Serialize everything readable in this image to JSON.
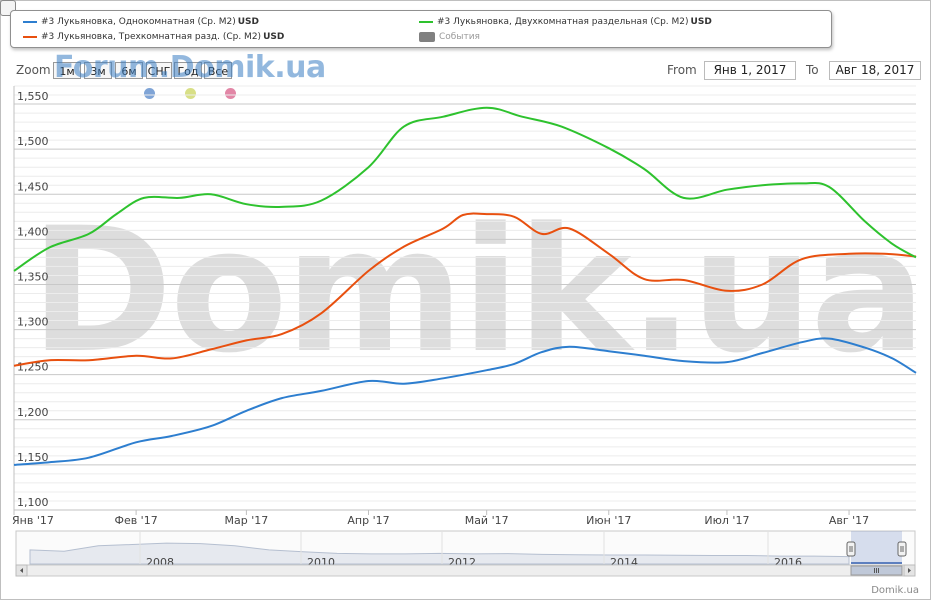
{
  "legend": {
    "items": [
      {
        "label": "#3 Лукьяновка, Однокомнатная (Ср. М2)",
        "unit": "USD",
        "color": "#2d7ecf"
      },
      {
        "label": "#3 Лукьяновка, Трехкомнатная разд. (Ср. М2)",
        "unit": "USD",
        "color": "#e8500f"
      },
      {
        "label": "#3 Лукьяновка, Двухкомнатная раздельная (Ср. М2)",
        "unit": "USD",
        "color": "#2ec22e"
      },
      {
        "label": "События",
        "color": "#808080"
      }
    ]
  },
  "toolbar": {
    "zoom_label": "Zoom",
    "zoom_buttons": [
      "1м",
      "3м",
      "6м",
      "СНГ",
      "Год",
      "Все"
    ],
    "watermark": "Forum.Domik.ua",
    "from_label": "From",
    "from_value": "Янв 1, 2017",
    "to_label": "To",
    "to_value": "Авг 18, 2017"
  },
  "big_watermark": "Domik.ua",
  "event_dot_colors": [
    "#7fa4d6",
    "#d8df86",
    "#e286a6"
  ],
  "navigator": {
    "years": [
      "2008",
      "2010",
      "2012",
      "2014",
      "2016"
    ]
  },
  "credit": "Domik.ua",
  "chart_data": {
    "type": "line",
    "x_labels": [
      "Янв '17",
      "Фев '17",
      "Мар '17",
      "Апр '17",
      "Май '17",
      "Июн '17",
      "Июл '17",
      "Авг '17"
    ],
    "x_range": [
      "2017-01-01",
      "2017-08-18"
    ],
    "y_ticks": [
      1100,
      1150,
      1200,
      1250,
      1300,
      1350,
      1400,
      1450,
      1500,
      1550
    ],
    "ylim": [
      1100,
      1570
    ],
    "grid": true,
    "legend_position": "top",
    "series": [
      {
        "name": "#3 Лукьяновка, Однокомнатная (Ср. М2)",
        "color": "#2d7ecf",
        "points": [
          [
            "2017-01-01",
            1150
          ],
          [
            "2017-01-10",
            1153
          ],
          [
            "2017-01-20",
            1158
          ],
          [
            "2017-02-01",
            1175
          ],
          [
            "2017-02-10",
            1182
          ],
          [
            "2017-02-20",
            1193
          ],
          [
            "2017-03-01",
            1210
          ],
          [
            "2017-03-10",
            1224
          ],
          [
            "2017-03-20",
            1232
          ],
          [
            "2017-04-01",
            1243
          ],
          [
            "2017-04-10",
            1240
          ],
          [
            "2017-04-20",
            1246
          ],
          [
            "2017-05-01",
            1255
          ],
          [
            "2017-05-08",
            1262
          ],
          [
            "2017-05-15",
            1275
          ],
          [
            "2017-05-22",
            1281
          ],
          [
            "2017-06-01",
            1276
          ],
          [
            "2017-06-10",
            1271
          ],
          [
            "2017-06-20",
            1265
          ],
          [
            "2017-07-01",
            1264
          ],
          [
            "2017-07-10",
            1274
          ],
          [
            "2017-07-20",
            1286
          ],
          [
            "2017-07-27",
            1290
          ],
          [
            "2017-08-05",
            1280
          ],
          [
            "2017-08-12",
            1268
          ],
          [
            "2017-08-18",
            1252
          ]
        ]
      },
      {
        "name": "#3 Лукьяновка, Трехкомнатная разд. (Ср. М2)",
        "color": "#e8500f",
        "points": [
          [
            "2017-01-01",
            1260
          ],
          [
            "2017-01-10",
            1266
          ],
          [
            "2017-01-20",
            1266
          ],
          [
            "2017-02-01",
            1271
          ],
          [
            "2017-02-10",
            1268
          ],
          [
            "2017-02-20",
            1278
          ],
          [
            "2017-03-01",
            1288
          ],
          [
            "2017-03-10",
            1295
          ],
          [
            "2017-03-20",
            1318
          ],
          [
            "2017-04-01",
            1365
          ],
          [
            "2017-04-10",
            1392
          ],
          [
            "2017-04-20",
            1412
          ],
          [
            "2017-04-25",
            1427
          ],
          [
            "2017-05-01",
            1428
          ],
          [
            "2017-05-08",
            1425
          ],
          [
            "2017-05-15",
            1406
          ],
          [
            "2017-05-22",
            1412
          ],
          [
            "2017-06-01",
            1384
          ],
          [
            "2017-06-10",
            1356
          ],
          [
            "2017-06-20",
            1355
          ],
          [
            "2017-07-01",
            1343
          ],
          [
            "2017-07-10",
            1350
          ],
          [
            "2017-07-20",
            1378
          ],
          [
            "2017-08-01",
            1384
          ],
          [
            "2017-08-10",
            1384
          ],
          [
            "2017-08-18",
            1381
          ]
        ]
      },
      {
        "name": "#3 Лукьяновка, Двухкомнатная раздельная (Ср. М2)",
        "color": "#2ec22e",
        "points": [
          [
            "2017-01-01",
            1365
          ],
          [
            "2017-01-10",
            1391
          ],
          [
            "2017-01-20",
            1406
          ],
          [
            "2017-01-27",
            1428
          ],
          [
            "2017-02-03",
            1446
          ],
          [
            "2017-02-12",
            1446
          ],
          [
            "2017-02-20",
            1450
          ],
          [
            "2017-03-01",
            1439
          ],
          [
            "2017-03-10",
            1436
          ],
          [
            "2017-03-20",
            1443
          ],
          [
            "2017-04-01",
            1480
          ],
          [
            "2017-04-10",
            1525
          ],
          [
            "2017-04-20",
            1536
          ],
          [
            "2017-05-01",
            1546
          ],
          [
            "2017-05-10",
            1536
          ],
          [
            "2017-05-20",
            1525
          ],
          [
            "2017-06-01",
            1501
          ],
          [
            "2017-06-10",
            1478
          ],
          [
            "2017-06-20",
            1446
          ],
          [
            "2017-07-01",
            1455
          ],
          [
            "2017-07-10",
            1460
          ],
          [
            "2017-07-20",
            1462
          ],
          [
            "2017-07-27",
            1458
          ],
          [
            "2017-08-05",
            1420
          ],
          [
            "2017-08-12",
            1395
          ],
          [
            "2017-08-18",
            1380
          ]
        ]
      }
    ]
  }
}
